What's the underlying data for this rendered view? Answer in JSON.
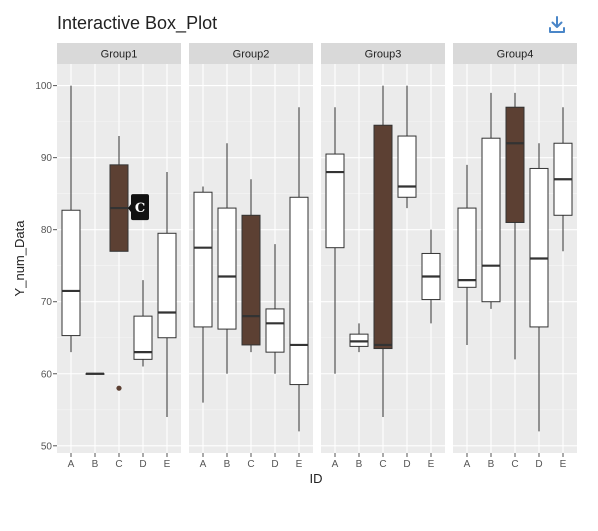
{
  "title": "Interactive Box_Plot",
  "toolbar": {
    "download_icon": "download-icon"
  },
  "tooltip": {
    "text": "C",
    "panel": 0,
    "category": "C"
  },
  "colors": {
    "highlight_fill": "#5c4033",
    "panel_bg": "#ebebeb",
    "strip_bg": "#d9d9d9",
    "tooltip_bg": "#111111"
  },
  "chart_data": {
    "type": "box",
    "title": "Interactive Box_Plot",
    "xlabel": "ID",
    "ylabel": "Y_num_Data",
    "ylim": [
      49,
      103
    ],
    "yticks": [
      50,
      60,
      70,
      80,
      90,
      100
    ],
    "categories": [
      "A",
      "B",
      "C",
      "D",
      "E"
    ],
    "highlight_category": "C",
    "grid": true,
    "panels": [
      {
        "name": "Group1",
        "boxes": [
          {
            "category": "A",
            "whisker_low": 63,
            "q1": 65.3,
            "median": 71.5,
            "q3": 82.7,
            "whisker_high": 100,
            "outliers": []
          },
          {
            "category": "B",
            "whisker_low": 60,
            "q1": 60,
            "median": 60,
            "q3": 60,
            "whisker_high": 60,
            "outliers": []
          },
          {
            "category": "C",
            "whisker_low": 77,
            "q1": 77,
            "median": 83,
            "q3": 89,
            "whisker_high": 93,
            "outliers": [
              58
            ]
          },
          {
            "category": "D",
            "whisker_low": 61,
            "q1": 62,
            "median": 63,
            "q3": 68,
            "whisker_high": 73,
            "outliers": []
          },
          {
            "category": "E",
            "whisker_low": 54,
            "q1": 65,
            "median": 68.5,
            "q3": 79.5,
            "whisker_high": 88,
            "outliers": []
          }
        ]
      },
      {
        "name": "Group2",
        "boxes": [
          {
            "category": "A",
            "whisker_low": 56,
            "q1": 66.5,
            "median": 77.5,
            "q3": 85.2,
            "whisker_high": 86,
            "outliers": []
          },
          {
            "category": "B",
            "whisker_low": 60,
            "q1": 66.2,
            "median": 73.5,
            "q3": 83,
            "whisker_high": 92,
            "outliers": []
          },
          {
            "category": "C",
            "whisker_low": 63,
            "q1": 64,
            "median": 68,
            "q3": 82,
            "whisker_high": 87,
            "outliers": []
          },
          {
            "category": "D",
            "whisker_low": 60,
            "q1": 63,
            "median": 67,
            "q3": 69,
            "whisker_high": 78,
            "outliers": []
          },
          {
            "category": "E",
            "whisker_low": 52,
            "q1": 58.5,
            "median": 64,
            "q3": 84.5,
            "whisker_high": 97,
            "outliers": []
          }
        ]
      },
      {
        "name": "Group3",
        "boxes": [
          {
            "category": "A",
            "whisker_low": 60,
            "q1": 77.5,
            "median": 88,
            "q3": 90.5,
            "whisker_high": 97,
            "outliers": []
          },
          {
            "category": "B",
            "whisker_low": 63,
            "q1": 63.8,
            "median": 64.5,
            "q3": 65.5,
            "whisker_high": 67,
            "outliers": []
          },
          {
            "category": "C",
            "whisker_low": 54,
            "q1": 63.5,
            "median": 64,
            "q3": 94.5,
            "whisker_high": 100,
            "outliers": []
          },
          {
            "category": "D",
            "whisker_low": 83,
            "q1": 84.5,
            "median": 86,
            "q3": 93,
            "whisker_high": 100,
            "outliers": []
          },
          {
            "category": "E",
            "whisker_low": 67,
            "q1": 70.3,
            "median": 73.5,
            "q3": 76.7,
            "whisker_high": 80,
            "outliers": []
          }
        ]
      },
      {
        "name": "Group4",
        "boxes": [
          {
            "category": "A",
            "whisker_low": 64,
            "q1": 72,
            "median": 73,
            "q3": 83,
            "whisker_high": 89,
            "outliers": []
          },
          {
            "category": "B",
            "whisker_low": 69,
            "q1": 70,
            "median": 75,
            "q3": 92.7,
            "whisker_high": 99,
            "outliers": []
          },
          {
            "category": "C",
            "whisker_low": 62,
            "q1": 81,
            "median": 92,
            "q3": 97,
            "whisker_high": 99,
            "outliers": []
          },
          {
            "category": "D",
            "whisker_low": 52,
            "q1": 66.5,
            "median": 76,
            "q3": 88.5,
            "whisker_high": 92,
            "outliers": []
          },
          {
            "category": "E",
            "whisker_low": 77,
            "q1": 82,
            "median": 87,
            "q3": 92,
            "whisker_high": 97,
            "outliers": []
          }
        ]
      }
    ]
  }
}
